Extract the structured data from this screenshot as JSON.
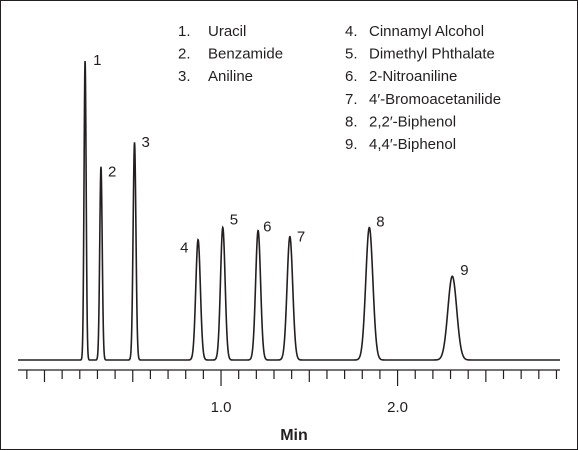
{
  "chart_data": {
    "type": "line",
    "title": "",
    "xlabel": "Min",
    "ylabel": "",
    "xlim": [
      -0.15,
      2.92
    ],
    "ylim": [
      0,
      1.0
    ],
    "x_major_ticks": [
      1.0,
      2.0
    ],
    "x_major_tick_labels": [
      "1.0",
      "2.0"
    ],
    "x_minor_tick_step": 0.1,
    "grid": false,
    "baseline": 0.015,
    "line_color": "#231f20",
    "series": [
      {
        "peaks": [
          {
            "label": "1",
            "x": 0.23,
            "height": 1.0,
            "width": 0.006
          },
          {
            "label": "2",
            "x": 0.32,
            "height": 0.65,
            "width": 0.007
          },
          {
            "label": "3",
            "x": 0.51,
            "height": 0.73,
            "width": 0.008
          },
          {
            "label": "4",
            "x": 0.87,
            "height": 0.41,
            "width": 0.013
          },
          {
            "label": "5",
            "x": 1.01,
            "height": 0.45,
            "width": 0.013
          },
          {
            "label": "6",
            "x": 1.21,
            "height": 0.44,
            "width": 0.014
          },
          {
            "label": "7",
            "x": 1.39,
            "height": 0.42,
            "width": 0.016
          },
          {
            "label": "8",
            "x": 1.84,
            "height": 0.45,
            "width": 0.02
          },
          {
            "label": "9",
            "x": 2.31,
            "height": 0.29,
            "width": 0.025
          }
        ]
      }
    ],
    "legend": {
      "position": "top",
      "columns": [
        [
          {
            "num": "1.",
            "name": "Uracil"
          },
          {
            "num": "2.",
            "name": "Benzamide"
          },
          {
            "num": "3.",
            "name": "Aniline"
          }
        ],
        [
          {
            "num": "4.",
            "name": "Cinnamyl Alcohol"
          },
          {
            "num": "5.",
            "name": "Dimethyl Phthalate"
          },
          {
            "num": "6.",
            "name": "2-Nitroaniline"
          },
          {
            "num": "7.",
            "name": "4′-Bromoacetanilide"
          },
          {
            "num": "8.",
            "name": "2,2′-Biphenol"
          },
          {
            "num": "9.",
            "name": "4,4′-Biphenol"
          }
        ]
      ]
    }
  }
}
